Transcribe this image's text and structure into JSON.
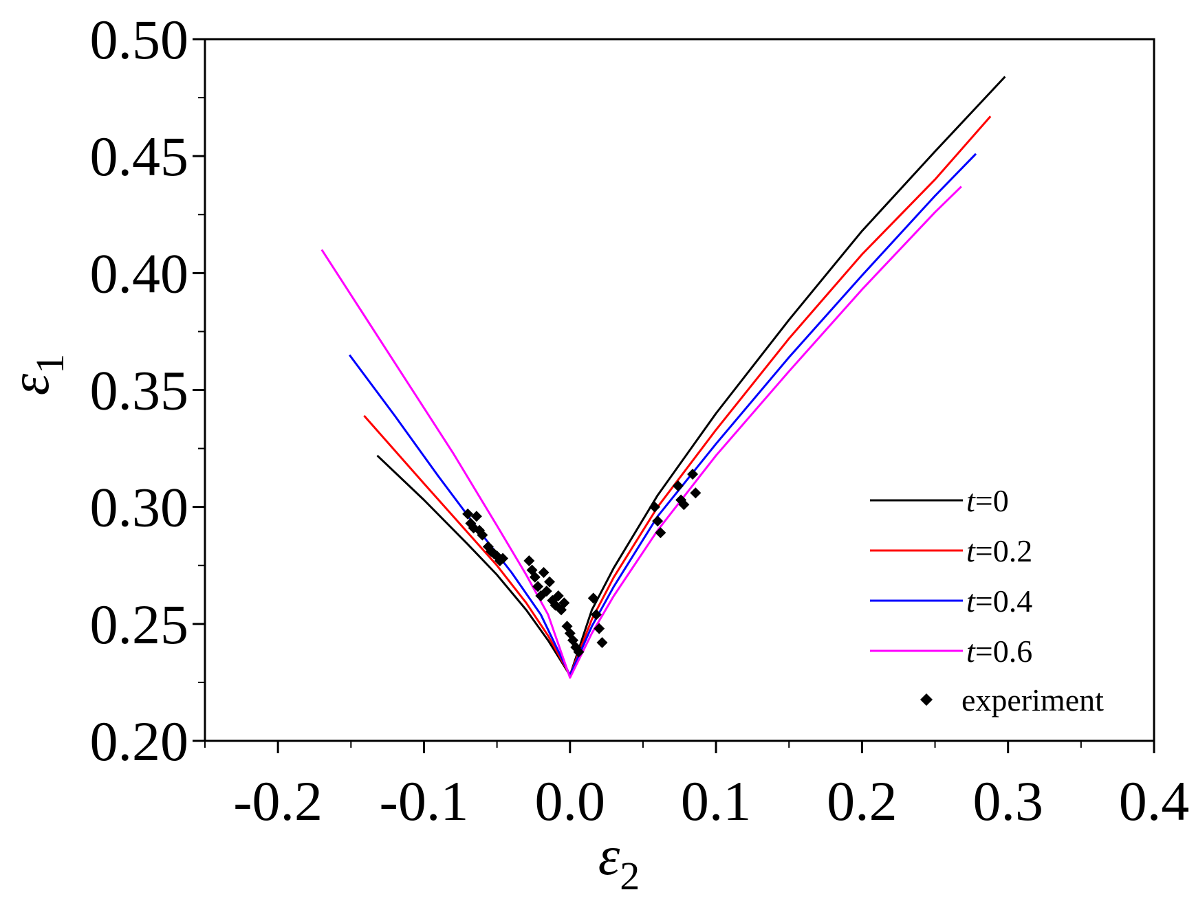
{
  "chart_data": {
    "type": "line",
    "title": "",
    "xlabel": "ε",
    "xlabel_sub": "2",
    "ylabel": "ε",
    "ylabel_sub": "1",
    "xlim": [
      -0.25,
      0.4
    ],
    "ylim": [
      0.2,
      0.5
    ],
    "x_ticks": [
      -0.2,
      -0.1,
      0.0,
      0.1,
      0.2,
      0.3,
      0.4
    ],
    "x_tick_labels": [
      "-0.2",
      "-0.1",
      "0.0",
      "0.1",
      "0.2",
      "0.3",
      "0.4"
    ],
    "y_ticks": [
      0.2,
      0.25,
      0.3,
      0.35,
      0.4,
      0.45,
      0.5
    ],
    "y_tick_labels": [
      "0.20",
      "0.25",
      "0.30",
      "0.35",
      "0.40",
      "0.45",
      "0.50"
    ],
    "grid": false,
    "legend_position": "bottom-right",
    "series": [
      {
        "name": "t=0",
        "legend_italic": "t",
        "legend_rest": "=0",
        "color": "#000000",
        "x": [
          -0.132,
          -0.1,
          -0.07,
          -0.05,
          -0.03,
          -0.015,
          0.0,
          0.015,
          0.03,
          0.06,
          0.1,
          0.15,
          0.2,
          0.25,
          0.298
        ],
        "y": [
          0.322,
          0.303,
          0.284,
          0.271,
          0.256,
          0.243,
          0.228,
          0.256,
          0.274,
          0.305,
          0.34,
          0.38,
          0.418,
          0.452,
          0.484
        ]
      },
      {
        "name": "t=0.2",
        "legend_italic": "t",
        "legend_rest": "=0.2",
        "color": "#ff0000",
        "x": [
          -0.141,
          -0.1,
          -0.07,
          -0.05,
          -0.03,
          -0.015,
          0.0,
          0.015,
          0.03,
          0.06,
          0.1,
          0.15,
          0.2,
          0.25,
          0.288
        ],
        "y": [
          0.339,
          0.31,
          0.289,
          0.275,
          0.259,
          0.245,
          0.228,
          0.252,
          0.27,
          0.3,
          0.333,
          0.372,
          0.408,
          0.44,
          0.467
        ]
      },
      {
        "name": "t=0.4",
        "legend_italic": "t",
        "legend_rest": "=0.4",
        "color": "#0000ff",
        "x": [
          -0.151,
          -0.12,
          -0.09,
          -0.06,
          -0.04,
          -0.02,
          0.0,
          0.015,
          0.03,
          0.06,
          0.1,
          0.15,
          0.2,
          0.25,
          0.278
        ],
        "y": [
          0.365,
          0.339,
          0.313,
          0.288,
          0.272,
          0.254,
          0.228,
          0.249,
          0.266,
          0.296,
          0.327,
          0.364,
          0.399,
          0.433,
          0.451
        ]
      },
      {
        "name": "t=0.6",
        "legend_italic": "t",
        "legend_rest": "=0.6",
        "color": "#ff00ff",
        "x": [
          -0.17,
          -0.14,
          -0.11,
          -0.08,
          -0.05,
          -0.03,
          -0.015,
          0.0,
          0.015,
          0.03,
          0.06,
          0.1,
          0.15,
          0.2,
          0.25,
          0.268
        ],
        "y": [
          0.41,
          0.381,
          0.352,
          0.323,
          0.292,
          0.271,
          0.254,
          0.227,
          0.246,
          0.262,
          0.29,
          0.322,
          0.358,
          0.393,
          0.426,
          0.437
        ]
      },
      {
        "name": "experiment",
        "color": "#000000",
        "marker": "diamond",
        "x": [
          -0.07,
          -0.068,
          -0.066,
          -0.064,
          -0.062,
          -0.06,
          -0.056,
          -0.054,
          -0.052,
          -0.05,
          -0.048,
          -0.046,
          -0.028,
          -0.026,
          -0.024,
          -0.022,
          -0.02,
          -0.018,
          -0.016,
          -0.014,
          -0.012,
          -0.01,
          -0.008,
          -0.006,
          -0.004,
          -0.002,
          0.0,
          0.002,
          0.004,
          0.006,
          0.016,
          0.018,
          0.02,
          0.022,
          0.058,
          0.06,
          0.062,
          0.074,
          0.076,
          0.078,
          0.084,
          0.086
        ],
        "y": [
          0.297,
          0.293,
          0.291,
          0.296,
          0.29,
          0.288,
          0.283,
          0.281,
          0.28,
          0.279,
          0.277,
          0.278,
          0.277,
          0.273,
          0.27,
          0.266,
          0.262,
          0.272,
          0.264,
          0.268,
          0.26,
          0.258,
          0.262,
          0.256,
          0.259,
          0.249,
          0.246,
          0.243,
          0.24,
          0.238,
          0.261,
          0.254,
          0.248,
          0.242,
          0.3,
          0.294,
          0.289,
          0.309,
          0.303,
          0.301,
          0.314,
          0.306
        ],
        "legend_label": "experiment"
      }
    ]
  }
}
